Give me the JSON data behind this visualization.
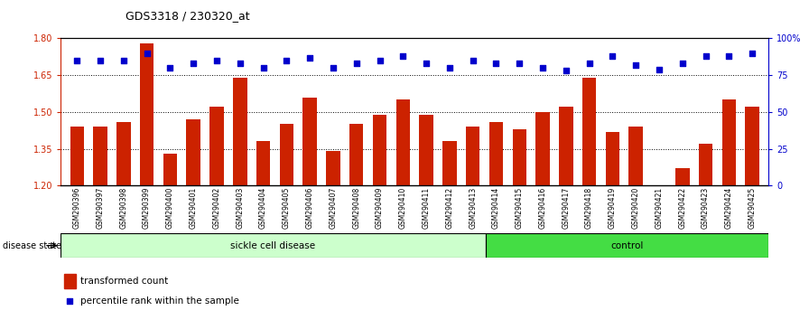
{
  "title": "GDS3318 / 230320_at",
  "categories": [
    "GSM290396",
    "GSM290397",
    "GSM290398",
    "GSM290399",
    "GSM290400",
    "GSM290401",
    "GSM290402",
    "GSM290403",
    "GSM290404",
    "GSM290405",
    "GSM290406",
    "GSM290407",
    "GSM290408",
    "GSM290409",
    "GSM290410",
    "GSM290411",
    "GSM290412",
    "GSM290413",
    "GSM290414",
    "GSM290415",
    "GSM290416",
    "GSM290417",
    "GSM290418",
    "GSM290419",
    "GSM290420",
    "GSM290421",
    "GSM290422",
    "GSM290423",
    "GSM290424",
    "GSM290425"
  ],
  "bar_values": [
    1.44,
    1.44,
    1.46,
    1.78,
    1.33,
    1.47,
    1.52,
    1.64,
    1.38,
    1.45,
    1.56,
    1.34,
    1.45,
    1.49,
    1.55,
    1.49,
    1.38,
    1.44,
    1.46,
    1.43,
    1.5,
    1.52,
    1.64,
    1.42,
    1.44,
    1.2,
    1.27,
    1.37,
    1.55,
    1.52
  ],
  "percentile_values": [
    85,
    85,
    85,
    90,
    80,
    83,
    85,
    83,
    80,
    85,
    87,
    80,
    83,
    85,
    88,
    83,
    80,
    85,
    83,
    83,
    80,
    78,
    83,
    88,
    82,
    79,
    83,
    88,
    88,
    90
  ],
  "ylim_left": [
    1.2,
    1.8
  ],
  "ylim_right": [
    0,
    100
  ],
  "yticks_left": [
    1.2,
    1.35,
    1.5,
    1.65,
    1.8
  ],
  "yticks_right": [
    0,
    25,
    50,
    75,
    100
  ],
  "bar_color": "#cc2200",
  "dot_color": "#0000cc",
  "sickle_count": 18,
  "control_count": 12,
  "sickle_label": "sickle cell disease",
  "control_label": "control",
  "disease_state_label": "disease state",
  "legend_bar_label": "transformed count",
  "legend_dot_label": "percentile rank within the sample",
  "sickle_bg": "#ccffcc",
  "control_bg": "#44dd44",
  "ybase": 1.2
}
